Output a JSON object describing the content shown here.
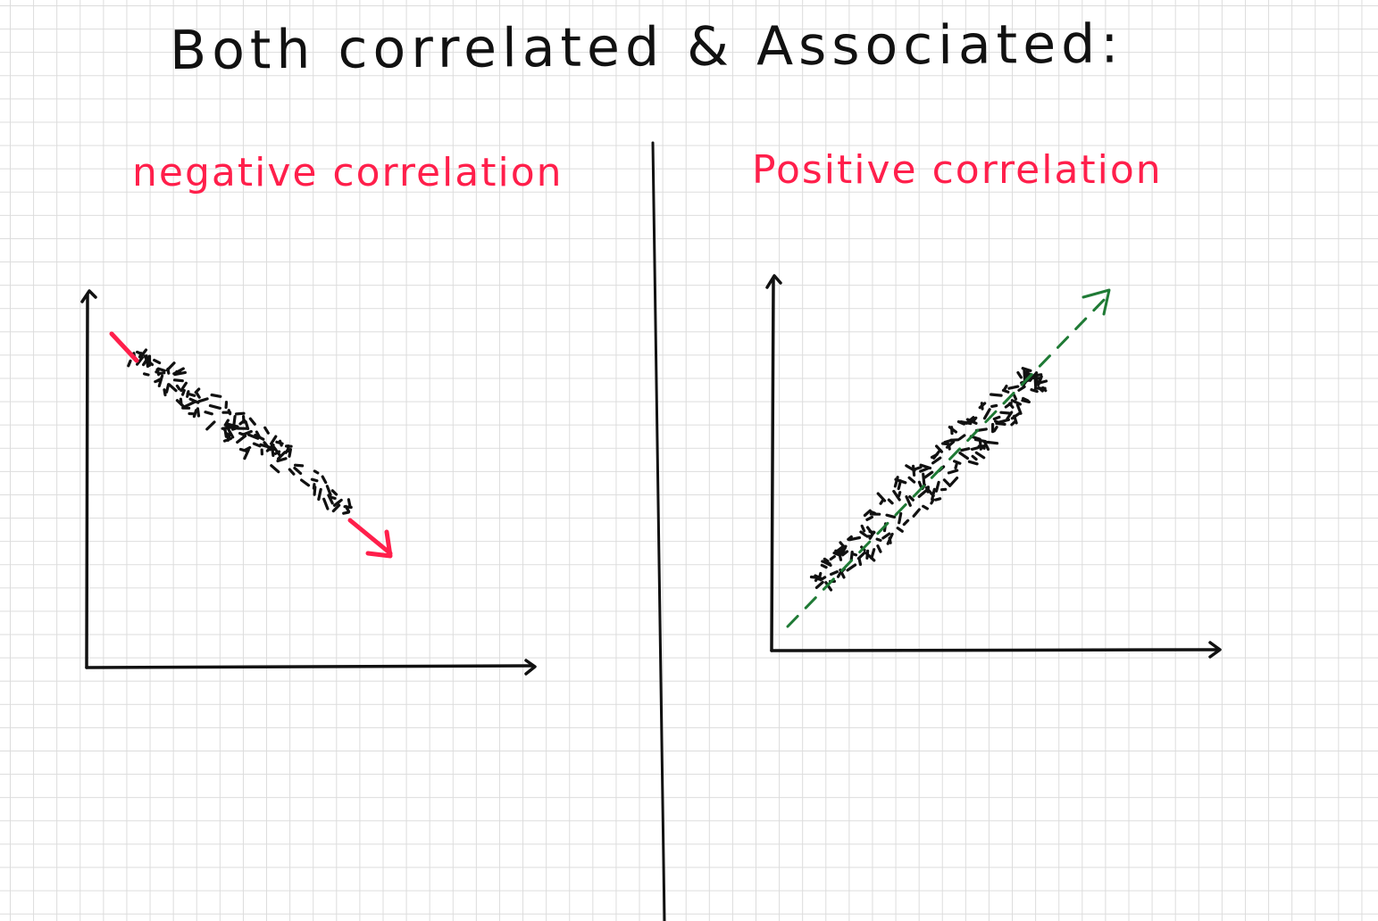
{
  "title": "Both correlated & Associated:",
  "colors": {
    "ink": "#111111",
    "heading": "#ff1f4b",
    "negative_trend": "#ff1f4b",
    "positive_trend": "#1f7a35",
    "grid": "#dcdcdc"
  },
  "left_panel": {
    "heading": "negative correlation",
    "trend": "down-right",
    "trend_arrow": "solid red arrow"
  },
  "right_panel": {
    "heading": "Positive correlation",
    "trend": "up-right",
    "trend_arrow": "dashed green arrow"
  },
  "divider": "vertical line"
}
